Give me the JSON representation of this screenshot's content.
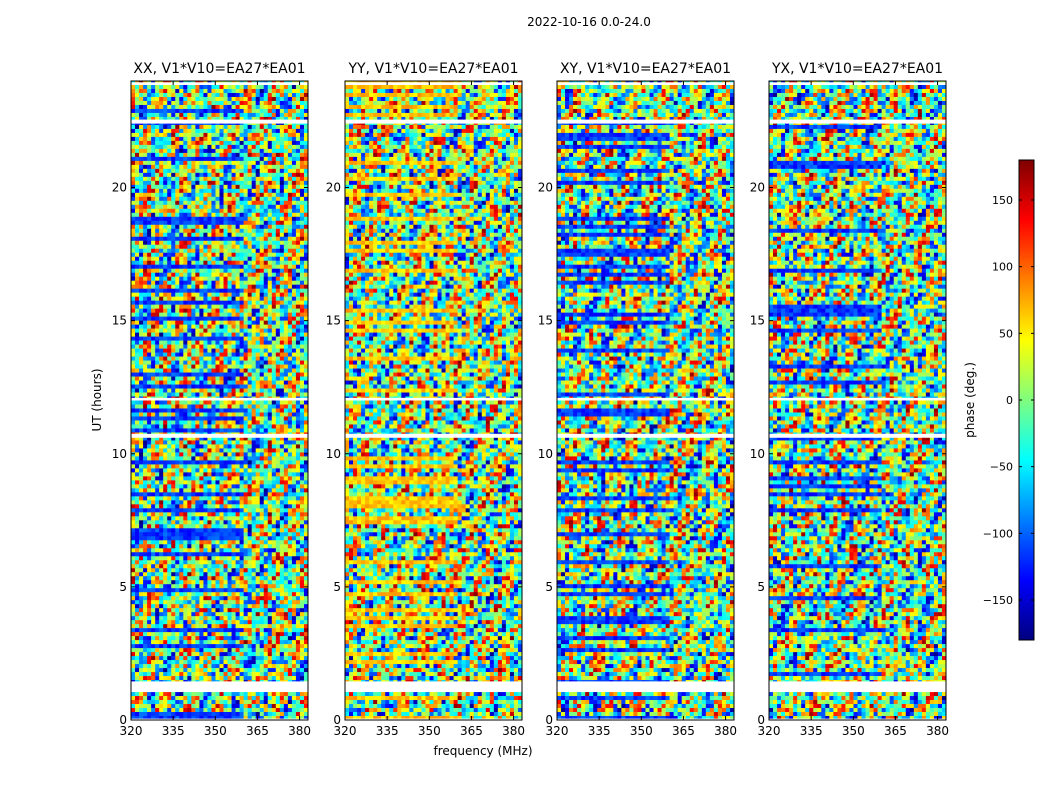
{
  "figure": {
    "suptitle": "2022-10-16 0.0-24.0",
    "ylabel": "UT (hours)",
    "xlabel": "frequency (MHz)"
  },
  "chart_data": [
    {
      "type": "heatmap",
      "title": "XX, V1*V10=EA27*EA01",
      "xlim": [
        320,
        383
      ],
      "ylim": [
        0,
        24
      ],
      "xticks": [
        "320",
        "335",
        "350",
        "365",
        "380"
      ],
      "yticks": [
        "0",
        "5",
        "10",
        "15",
        "20"
      ],
      "color_scale": "phase (deg.), -180 to 180, jet colormap",
      "flagged_bands_hours": [
        [
          0.0,
          0.05
        ],
        [
          1.05,
          1.45
        ],
        [
          10.6,
          10.75
        ],
        [
          12.0,
          12.1
        ],
        [
          22.4,
          22.55
        ],
        [
          23.85,
          23.95
        ]
      ]
    },
    {
      "type": "heatmap",
      "title": "YY, V1*V10=EA27*EA01",
      "xlim": [
        320,
        383
      ],
      "ylim": [
        0,
        24
      ],
      "xticks": [
        "320",
        "335",
        "350",
        "365",
        "380"
      ],
      "yticks": [
        "0",
        "5",
        "10",
        "15",
        "20"
      ],
      "color_scale": "phase (deg.), -180 to 180, jet colormap",
      "flagged_bands_hours": [
        [
          0.0,
          0.05
        ],
        [
          1.05,
          1.45
        ],
        [
          10.6,
          10.75
        ],
        [
          12.0,
          12.1
        ],
        [
          22.4,
          22.55
        ],
        [
          23.85,
          23.95
        ]
      ]
    },
    {
      "type": "heatmap",
      "title": "XY, V1*V10=EA27*EA01",
      "xlim": [
        320,
        383
      ],
      "ylim": [
        0,
        24
      ],
      "xticks": [
        "320",
        "335",
        "350",
        "365",
        "380"
      ],
      "yticks": [
        "0",
        "5",
        "10",
        "15",
        "20"
      ],
      "color_scale": "phase (deg.), -180 to 180, jet colormap",
      "flagged_bands_hours": [
        [
          0.0,
          0.05
        ],
        [
          1.05,
          1.45
        ],
        [
          10.6,
          10.75
        ],
        [
          12.0,
          12.1
        ],
        [
          22.4,
          22.55
        ],
        [
          23.85,
          23.95
        ]
      ]
    },
    {
      "type": "heatmap",
      "title": "YX, V1*V10=EA27*EA01",
      "xlim": [
        320,
        383
      ],
      "ylim": [
        0,
        24
      ],
      "xticks": [
        "320",
        "335",
        "350",
        "365",
        "380"
      ],
      "yticks": [
        "0",
        "5",
        "10",
        "15",
        "20"
      ],
      "color_scale": "phase (deg.), -180 to 180, jet colormap",
      "flagged_bands_hours": [
        [
          0.0,
          0.05
        ],
        [
          1.05,
          1.45
        ],
        [
          10.6,
          10.75
        ],
        [
          12.0,
          12.1
        ],
        [
          22.4,
          22.55
        ],
        [
          23.85,
          23.95
        ]
      ]
    }
  ],
  "colorbar": {
    "label": "phase (deg.)",
    "range": [
      -180,
      180
    ],
    "ticks": [
      "150",
      "100",
      "50",
      "0",
      "−50",
      "−100",
      "−150"
    ],
    "tick_values": [
      150,
      100,
      50,
      0,
      -50,
      -100,
      -150
    ],
    "colormap_stops": [
      "#00007f",
      "#0000ff",
      "#007fff",
      "#00ffff",
      "#7fff7f",
      "#ffff00",
      "#ff7f00",
      "#ff0000",
      "#7f0000"
    ]
  }
}
